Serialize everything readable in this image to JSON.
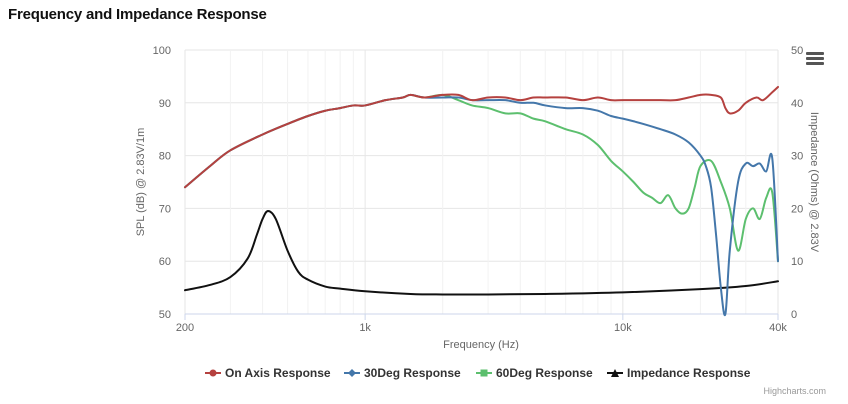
{
  "page": {
    "title": "Frequency and Impedance Response"
  },
  "credits": "Highcharts.com",
  "colors": {
    "on_axis": "#b5413f",
    "deg30": "#4477aa",
    "deg60": "#5cbf6e",
    "impedance": "#111111",
    "grid": "#e6e6e6",
    "axis_text": "#666666"
  },
  "icons": {
    "menu": "hamburger-menu-icon"
  },
  "chart_data": {
    "type": "line",
    "title": "Frequency and Impedance Response",
    "xlabel": "Frequency (Hz)",
    "x_scale": "log",
    "xlim": [
      200,
      40000
    ],
    "x_ticks": [
      200,
      1000,
      10000,
      40000
    ],
    "x_tick_labels": [
      "200",
      "1k",
      "10k",
      "40k"
    ],
    "ylabel": "SPL (dB) @ 2.83V/1m",
    "ylim": [
      50,
      100
    ],
    "y_ticks": [
      50,
      60,
      70,
      80,
      90,
      100
    ],
    "y_tick_labels": [
      "50",
      "60",
      "70",
      "80",
      "90",
      "100"
    ],
    "y2label": "Impedance (Ohms) @ 2.83V",
    "y2lim": [
      0,
      50
    ],
    "y2_ticks": [
      0,
      10,
      20,
      30,
      40,
      50
    ],
    "y2_tick_labels": [
      "0",
      "10",
      "20",
      "30",
      "40",
      "50"
    ],
    "grid": true,
    "legend_position": "bottom-center",
    "series": [
      {
        "name": "On Axis Response",
        "axis": "left",
        "color": "#b5413f",
        "x": [
          200,
          250,
          300,
          400,
          500,
          600,
          700,
          800,
          900,
          1000,
          1200,
          1400,
          1500,
          1700,
          2000,
          2300,
          2600,
          3000,
          3500,
          4000,
          4500,
          5000,
          6000,
          7000,
          8000,
          9000,
          10000,
          12000,
          14000,
          16000,
          18000,
          20000,
          22000,
          24000,
          25000,
          26000,
          28000,
          30000,
          33000,
          35000,
          38000,
          40000
        ],
        "y": [
          74,
          78,
          81,
          84,
          86,
          87.5,
          88.5,
          89,
          89.5,
          89.5,
          90.5,
          91,
          91.5,
          91,
          91.5,
          91.5,
          90.5,
          91,
          91,
          90.5,
          91,
          91,
          91,
          90.5,
          91,
          90.5,
          90.5,
          90.5,
          90.5,
          90.5,
          91,
          91.5,
          91.5,
          91,
          89,
          88,
          88.5,
          90,
          91,
          90.5,
          92,
          93
        ]
      },
      {
        "name": "30Deg Response",
        "axis": "left",
        "color": "#4477aa",
        "x": [
          200,
          250,
          300,
          400,
          500,
          600,
          700,
          800,
          900,
          1000,
          1200,
          1400,
          1500,
          1700,
          2000,
          2300,
          2600,
          3000,
          3500,
          4000,
          4500,
          5000,
          6000,
          7000,
          8000,
          9000,
          10000,
          11000,
          12000,
          14000,
          16000,
          18000,
          20000,
          21000,
          22000,
          23000,
          24000,
          25000,
          26000,
          28000,
          30000,
          32000,
          34000,
          36000,
          38000,
          40000
        ],
        "y": [
          74,
          78,
          81,
          84,
          86,
          87.5,
          88.5,
          89,
          89.5,
          89.5,
          90.5,
          91,
          91.5,
          91,
          91,
          91,
          90.5,
          90.5,
          90.5,
          90,
          90,
          89.5,
          89,
          89,
          88.5,
          87.5,
          87,
          86.5,
          86,
          85,
          84,
          82.5,
          80,
          78,
          74,
          65,
          55,
          50,
          62,
          75,
          78.5,
          78,
          78.5,
          77,
          79.5,
          60
        ]
      },
      {
        "name": "60Deg Response",
        "axis": "left",
        "color": "#5cbf6e",
        "x": [
          200,
          250,
          300,
          400,
          500,
          600,
          700,
          800,
          900,
          1000,
          1200,
          1400,
          1500,
          1700,
          2000,
          2300,
          2600,
          3000,
          3500,
          4000,
          4500,
          5000,
          6000,
          7000,
          8000,
          9000,
          10000,
          11000,
          12000,
          13000,
          14000,
          15000,
          16000,
          17000,
          18000,
          19000,
          20000,
          22000,
          24000,
          26000,
          28000,
          30000,
          32000,
          34000,
          36000,
          38000,
          40000
        ],
        "y": [
          74,
          78,
          81,
          84,
          86,
          87.5,
          88.5,
          89,
          89.5,
          89.5,
          90.5,
          91,
          91.5,
          91,
          91.5,
          90.5,
          89.5,
          89,
          88,
          88,
          87,
          86.5,
          85,
          84,
          82,
          79,
          77,
          75,
          73,
          72,
          71,
          72.5,
          70,
          69,
          70,
          74,
          78,
          79,
          75,
          70,
          62,
          68,
          70,
          68,
          72,
          73,
          60
        ]
      },
      {
        "name": "Impedance Response",
        "axis": "right",
        "color": "#111111",
        "x": [
          200,
          250,
          300,
          350,
          380,
          400,
          420,
          450,
          500,
          550,
          600,
          700,
          800,
          1000,
          1500,
          2000,
          3000,
          5000,
          10000,
          20000,
          30000,
          40000
        ],
        "y": [
          4.5,
          5.5,
          7,
          10.5,
          15,
          18,
          19.5,
          18,
          12,
          8,
          6.5,
          5.2,
          4.8,
          4.3,
          3.8,
          3.7,
          3.7,
          3.8,
          4.1,
          4.7,
          5.3,
          6.2
        ]
      }
    ]
  }
}
